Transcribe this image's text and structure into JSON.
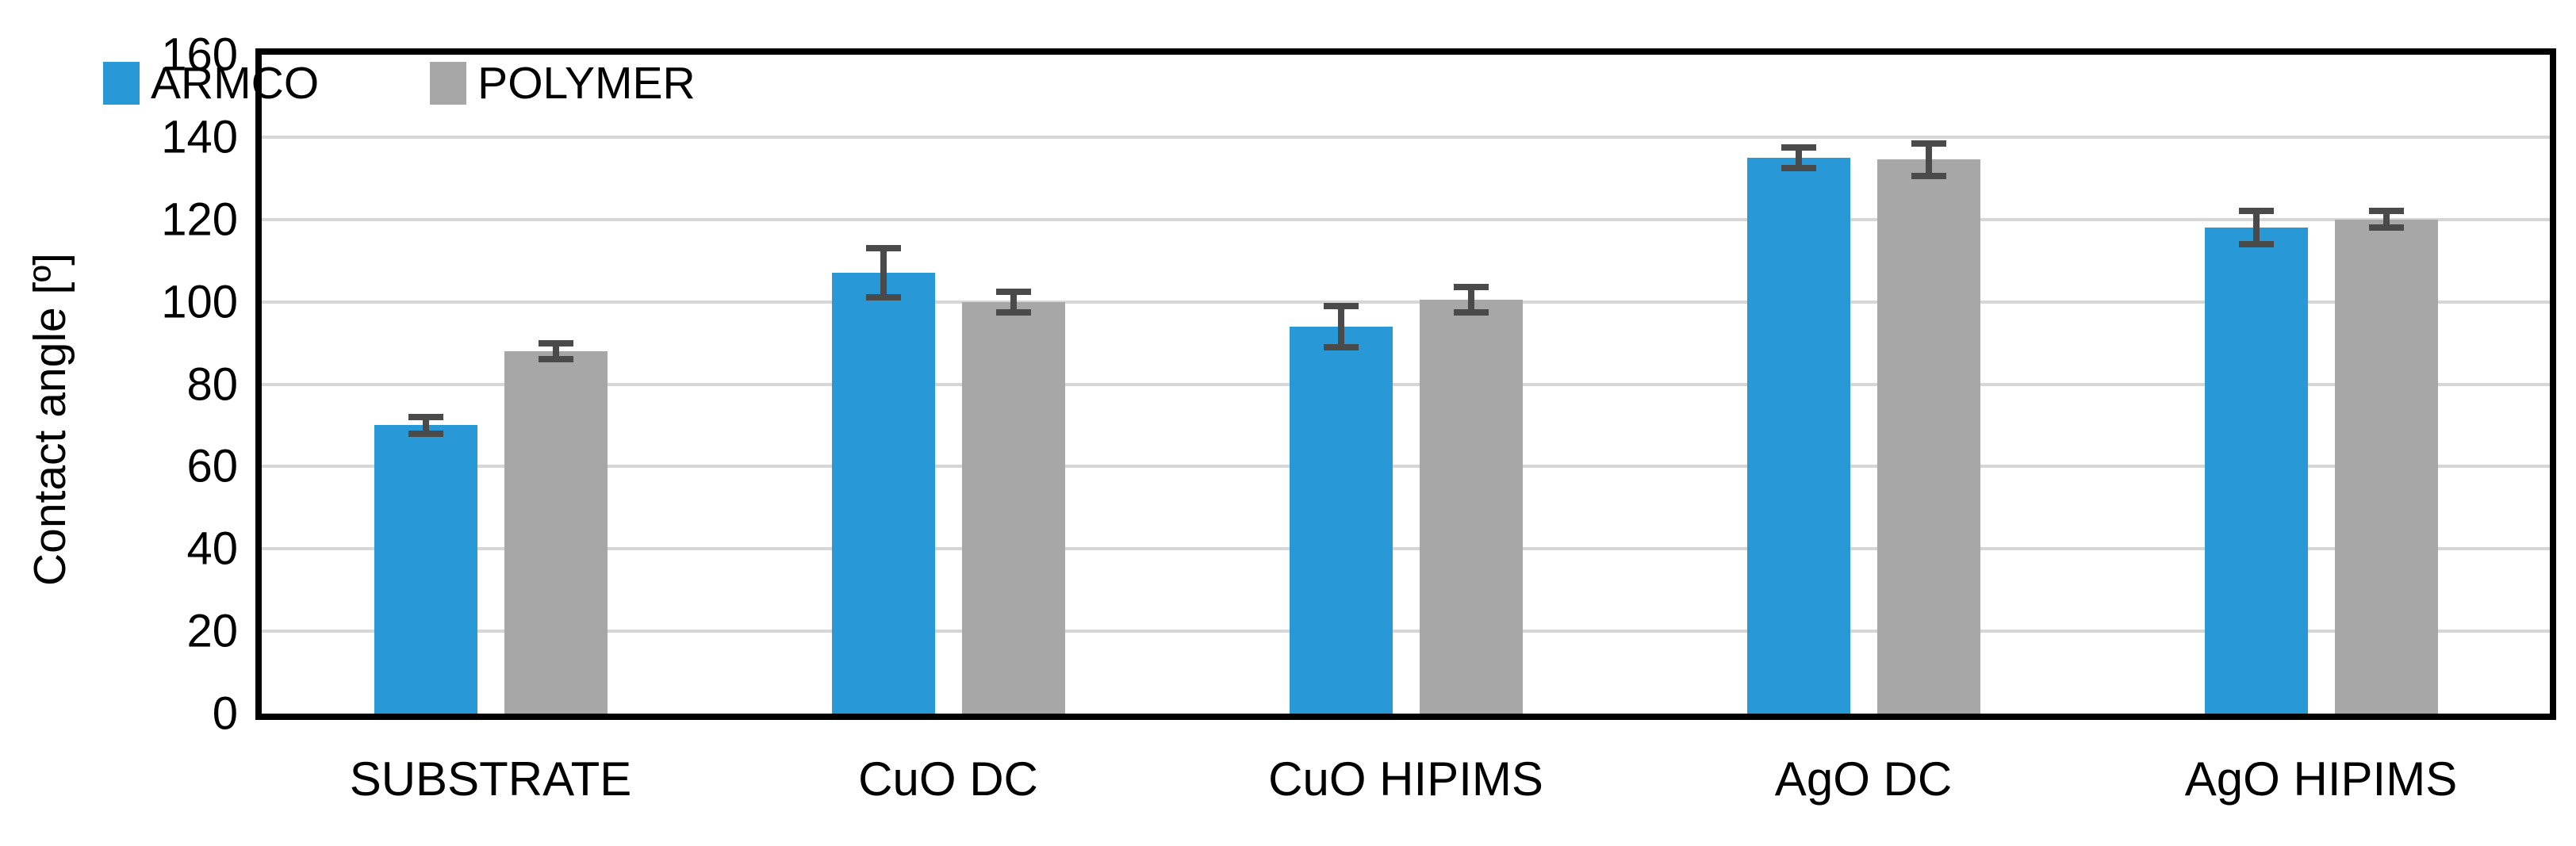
{
  "chart_data": {
    "type": "bar",
    "title": "",
    "xlabel": "",
    "ylabel": "Contact angle [º]",
    "categories": [
      "SUBSTRATE",
      "CuO DC",
      "CuO HIPIMS",
      "AgO DC",
      "AgO HIPIMS"
    ],
    "series": [
      {
        "name": "ARMCO",
        "color": "#2899D6",
        "values": [
          70,
          107,
          94,
          135,
          118
        ],
        "errors": [
          2,
          6,
          5,
          2.5,
          4
        ]
      },
      {
        "name": "POLYMER",
        "color": "#A7A7A7",
        "values": [
          88,
          100,
          100.5,
          134.5,
          120
        ],
        "errors": [
          2,
          2.5,
          3,
          4,
          2
        ]
      }
    ],
    "ylim": [
      0,
      160
    ],
    "yticks": [
      0,
      20,
      40,
      60,
      80,
      100,
      120,
      140,
      160
    ],
    "grid": true,
    "legend_position": "top-left-inside",
    "gridline_color": "#D6D6D6",
    "error_bar_color": "#4A4A4A",
    "axis_frame_color": "#000000"
  }
}
